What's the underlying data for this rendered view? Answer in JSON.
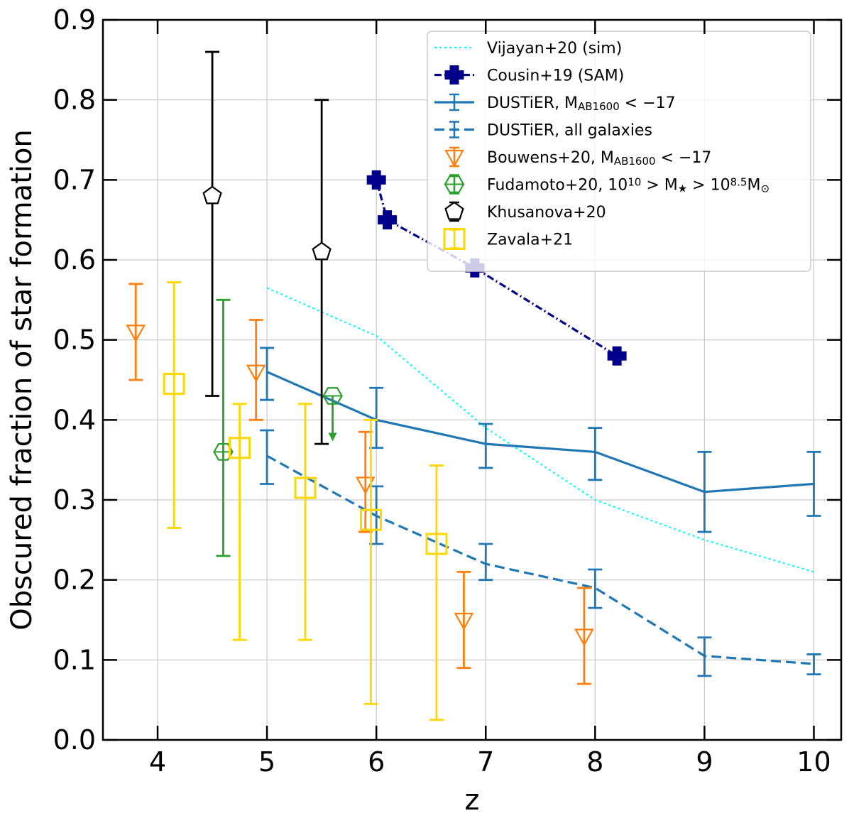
{
  "chart_data": {
    "type": "line",
    "xlabel": "z",
    "ylabel": "Obscured fraction of star formation",
    "xlim": [
      3.5,
      10.25
    ],
    "ylim": [
      0.0,
      0.9
    ],
    "xticks": [
      4,
      5,
      6,
      7,
      8,
      9,
      10
    ],
    "yticks": [
      0.0,
      0.1,
      0.2,
      0.3,
      0.4,
      0.5,
      0.6,
      0.7,
      0.8,
      0.9
    ],
    "xtick_labels": [
      "4",
      "5",
      "6",
      "7",
      "8",
      "9",
      "10"
    ],
    "ytick_labels": [
      "0.0",
      "0.1",
      "0.2",
      "0.3",
      "0.4",
      "0.5",
      "0.6",
      "0.7",
      "0.8",
      "0.9"
    ],
    "grid": true,
    "legend_position": "top-right",
    "series": [
      {
        "name": "Vijayan+20 (sim)",
        "legend": {
          "main": "Vijayan+20 (sim)"
        },
        "kind": "line",
        "color": "#00ffff",
        "linestyle": "dotted",
        "marker": "none",
        "x": [
          5,
          6,
          7,
          8,
          9,
          10
        ],
        "y": [
          0.565,
          0.505,
          0.39,
          0.3,
          0.25,
          0.21
        ]
      },
      {
        "name": "Cousin+19 (SAM)",
        "legend": {
          "main": "Cousin+19 (SAM)"
        },
        "kind": "line",
        "color": "#00008b",
        "linestyle": "dashdot",
        "marker": "plus",
        "x": [
          6.0,
          6.1,
          6.9,
          8.2
        ],
        "y": [
          0.7,
          0.65,
          0.59,
          0.48
        ]
      },
      {
        "name": "DUSTiER, M_AB1600 < −17",
        "legend": {
          "main": "DUSTiER, M",
          "sub": "AB1600",
          "tail": " < −17"
        },
        "kind": "line",
        "color": "#1f77b4",
        "linestyle": "solid",
        "marker": "none",
        "x": [
          5,
          6,
          7,
          8,
          9,
          10
        ],
        "y": [
          0.46,
          0.4,
          0.37,
          0.36,
          0.31,
          0.32
        ],
        "yerr_low": [
          0.425,
          0.365,
          0.34,
          0.325,
          0.26,
          0.28
        ],
        "yerr_high": [
          0.49,
          0.44,
          0.395,
          0.39,
          0.36,
          0.36
        ]
      },
      {
        "name": "DUSTiER, all galaxies",
        "legend": {
          "main": "DUSTiER, all galaxies"
        },
        "kind": "line",
        "color": "#1f77b4",
        "linestyle": "dashed",
        "marker": "none",
        "x": [
          5,
          6,
          7,
          8,
          9,
          10
        ],
        "y": [
          0.355,
          0.28,
          0.22,
          0.19,
          0.105,
          0.095
        ],
        "yerr_low": [
          0.32,
          0.245,
          0.2,
          0.165,
          0.08,
          0.082
        ],
        "yerr_high": [
          0.387,
          0.317,
          0.245,
          0.213,
          0.128,
          0.107
        ]
      },
      {
        "name": "Bouwens+20, M_AB1600 < −17",
        "legend": {
          "main": "Bouwens+20, M",
          "sub": "AB1600",
          "tail": " < −17"
        },
        "kind": "errorbar",
        "color": "#ff7f0e",
        "marker": "triangle-down",
        "x": [
          3.8,
          4.9,
          5.9,
          6.8,
          7.9
        ],
        "y": [
          0.51,
          0.46,
          0.32,
          0.15,
          0.13
        ],
        "yerr_low": [
          0.45,
          0.4,
          0.26,
          0.09,
          0.07
        ],
        "yerr_high": [
          0.57,
          0.525,
          0.385,
          0.21,
          0.19
        ]
      },
      {
        "name": "Fudamoto+20, 10^10 > M* > 10^8.5 M☉",
        "legend": {
          "main": "Fudamoto+20, 10",
          "sup1": "10",
          "mid": " > M",
          "mid_sub": "★",
          "mid2": " > 10",
          "sup2": "8.5",
          "tail": "M",
          "tail_sub": "⊙"
        },
        "kind": "errorbar",
        "color": "#2ca02c",
        "marker": "hexagon",
        "x": [
          4.6,
          5.6
        ],
        "y": [
          0.36,
          0.43
        ],
        "yerr_low": [
          0.23,
          null
        ],
        "yerr_high": [
          0.55,
          null
        ],
        "upper_limit": [
          false,
          true
        ],
        "arrow_to": [
          null,
          0.375
        ]
      },
      {
        "name": "Khusanova+20",
        "legend": {
          "main": "Khusanova+20"
        },
        "kind": "errorbar",
        "color": "#000000",
        "marker": "pentagon",
        "x": [
          4.5,
          5.5
        ],
        "y": [
          0.68,
          0.61
        ],
        "yerr_low": [
          0.43,
          0.37
        ],
        "yerr_high": [
          0.86,
          0.8
        ]
      },
      {
        "name": "Zavala+21",
        "legend": {
          "main": "Zavala+21"
        },
        "kind": "errorbar",
        "color": "#ffd700",
        "marker": "square",
        "x": [
          4.15,
          4.75,
          5.35,
          5.95,
          6.55
        ],
        "y": [
          0.445,
          0.365,
          0.315,
          0.275,
          0.245
        ],
        "yerr_low": [
          0.265,
          0.125,
          0.125,
          0.045,
          0.025
        ],
        "yerr_high": [
          0.572,
          0.42,
          0.42,
          0.4,
          0.343
        ]
      }
    ]
  }
}
